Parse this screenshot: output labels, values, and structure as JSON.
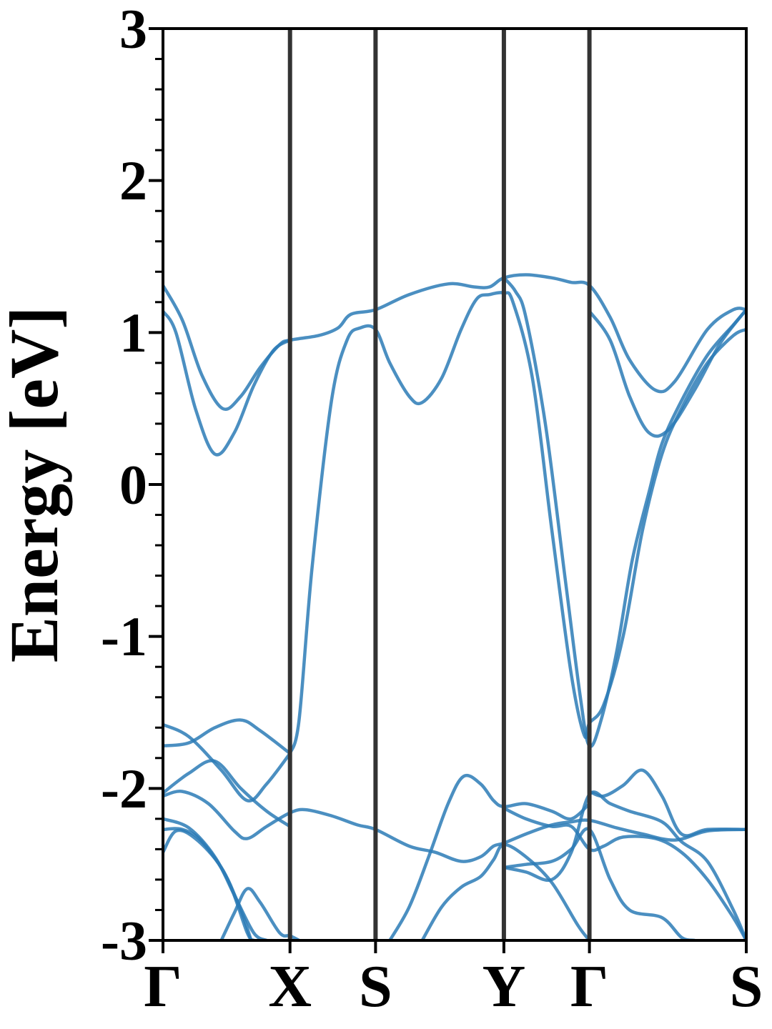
{
  "chart_data": {
    "type": "line",
    "title": "",
    "xlabel": "",
    "ylabel": "Energy [eV]",
    "ylim": [
      -3,
      3
    ],
    "x_range": [
      0,
      4.5
    ],
    "yticks": [
      3,
      2,
      1,
      0,
      -1,
      -2,
      -3
    ],
    "ytick_labels": [
      "3",
      "2",
      "1",
      "0",
      "-1",
      "-2",
      "-3"
    ],
    "kpoints": [
      {
        "label": "Γ",
        "x": 0.0
      },
      {
        "label": "X",
        "x": 0.98
      },
      {
        "label": "S",
        "x": 1.64
      },
      {
        "label": "Y",
        "x": 2.63
      },
      {
        "label": "Γ",
        "x": 3.29
      },
      {
        "label": "S",
        "x": 4.5
      }
    ],
    "colors": {
      "band": "#2c7bb6",
      "kline": "#333333",
      "axis": "#000000"
    },
    "series": [
      {
        "points": [
          [
            0,
            1.31
          ],
          [
            0.15,
            1.08
          ],
          [
            0.3,
            0.72
          ],
          [
            0.46,
            0.5
          ],
          [
            0.6,
            0.58
          ],
          [
            0.75,
            0.77
          ],
          [
            0.9,
            0.92
          ],
          [
            0.98,
            0.95
          ],
          [
            1.2,
            0.98
          ],
          [
            1.35,
            1.03
          ],
          [
            1.45,
            1.12
          ],
          [
            1.64,
            1.15
          ],
          [
            1.9,
            1.25
          ],
          [
            2.2,
            1.32
          ],
          [
            2.4,
            1.3
          ],
          [
            2.52,
            1.3
          ],
          [
            2.63,
            1.36
          ],
          [
            2.8,
            1.38
          ],
          [
            3.0,
            1.36
          ],
          [
            3.15,
            1.33
          ],
          [
            3.29,
            1.31
          ],
          [
            3.45,
            1.1
          ],
          [
            3.6,
            0.82
          ],
          [
            3.8,
            0.62
          ],
          [
            3.95,
            0.68
          ],
          [
            4.2,
            1.02
          ],
          [
            4.4,
            1.15
          ],
          [
            4.5,
            1.15
          ]
        ]
      },
      {
        "points": [
          [
            0,
            1.14
          ],
          [
            0.1,
            1.0
          ],
          [
            0.25,
            0.5
          ],
          [
            0.4,
            0.2
          ],
          [
            0.55,
            0.34
          ],
          [
            0.7,
            0.65
          ],
          [
            0.85,
            0.88
          ],
          [
            0.98,
            0.95
          ]
        ]
      },
      {
        "points": [
          [
            0.98,
            -1.77
          ],
          [
            1.05,
            -1.55
          ],
          [
            1.15,
            -0.55
          ],
          [
            1.3,
            0.55
          ],
          [
            1.42,
            0.95
          ],
          [
            1.52,
            1.03
          ],
          [
            1.64,
            1.02
          ],
          [
            1.75,
            0.8
          ],
          [
            1.9,
            0.58
          ],
          [
            2.0,
            0.54
          ],
          [
            2.15,
            0.7
          ],
          [
            2.3,
            1.02
          ],
          [
            2.42,
            1.22
          ],
          [
            2.52,
            1.25
          ],
          [
            2.63,
            1.26
          ],
          [
            2.7,
            1.2
          ],
          [
            2.85,
            0.7
          ],
          [
            3.0,
            -0.3
          ],
          [
            3.15,
            -1.25
          ],
          [
            3.25,
            -1.65
          ],
          [
            3.29,
            -1.57
          ],
          [
            3.4,
            -1.45
          ],
          [
            3.55,
            -1.0
          ],
          [
            3.7,
            -0.3
          ],
          [
            3.85,
            0.2
          ],
          [
            4.0,
            0.5
          ],
          [
            4.2,
            0.8
          ],
          [
            4.4,
            0.98
          ],
          [
            4.5,
            1.02
          ]
        ]
      },
      {
        "points": [
          [
            2.63,
            1.36
          ],
          [
            2.72,
            1.27
          ],
          [
            2.8,
            1.1
          ],
          [
            2.95,
            0.4
          ],
          [
            3.1,
            -0.6
          ],
          [
            3.22,
            -1.4
          ],
          [
            3.29,
            -1.72
          ],
          [
            3.38,
            -1.55
          ],
          [
            3.5,
            -1.1
          ],
          [
            3.62,
            -0.5
          ],
          [
            3.75,
            -0.05
          ],
          [
            3.85,
            0.27
          ],
          [
            4.0,
            0.55
          ],
          [
            4.2,
            0.85
          ],
          [
            4.4,
            1.05
          ],
          [
            4.5,
            1.15
          ]
        ]
      },
      {
        "points": [
          [
            3.29,
            1.14
          ],
          [
            3.45,
            0.95
          ],
          [
            3.6,
            0.58
          ],
          [
            3.75,
            0.34
          ],
          [
            3.9,
            0.36
          ],
          [
            4.1,
            0.62
          ],
          [
            4.3,
            0.93
          ],
          [
            4.5,
            1.15
          ]
        ]
      },
      {
        "points": [
          [
            0,
            -1.58
          ],
          [
            0.2,
            -1.66
          ],
          [
            0.45,
            -1.88
          ],
          [
            0.65,
            -2.08
          ],
          [
            0.8,
            -1.97
          ],
          [
            0.98,
            -1.77
          ]
        ]
      },
      {
        "points": [
          [
            0,
            -1.72
          ],
          [
            0.2,
            -1.7
          ],
          [
            0.4,
            -1.6
          ],
          [
            0.6,
            -1.55
          ],
          [
            0.75,
            -1.62
          ],
          [
            0.98,
            -1.77
          ]
        ]
      },
      {
        "points": [
          [
            0,
            -2.03
          ],
          [
            0.2,
            -1.9
          ],
          [
            0.4,
            -1.82
          ],
          [
            0.6,
            -2.0
          ],
          [
            0.8,
            -2.15
          ],
          [
            0.98,
            -2.25
          ]
        ]
      },
      {
        "points": [
          [
            0,
            -2.05
          ],
          [
            0.15,
            -2.02
          ],
          [
            0.35,
            -2.1
          ],
          [
            0.55,
            -2.28
          ],
          [
            0.65,
            -2.33
          ],
          [
            0.8,
            -2.25
          ],
          [
            0.98,
            -2.16
          ],
          [
            1.1,
            -2.14
          ],
          [
            1.3,
            -2.18
          ],
          [
            1.5,
            -2.24
          ],
          [
            1.64,
            -2.27
          ],
          [
            1.9,
            -2.38
          ],
          [
            2.1,
            -2.42
          ],
          [
            2.3,
            -2.48
          ],
          [
            2.45,
            -2.45
          ],
          [
            2.55,
            -2.38
          ],
          [
            2.63,
            -2.36
          ],
          [
            2.8,
            -2.3
          ],
          [
            3.0,
            -2.24
          ],
          [
            3.15,
            -2.22
          ],
          [
            3.29,
            -2.21
          ],
          [
            3.5,
            -2.26
          ],
          [
            3.7,
            -2.3
          ],
          [
            3.95,
            -2.34
          ],
          [
            4.2,
            -2.28
          ],
          [
            4.5,
            -2.27
          ]
        ]
      },
      {
        "points": [
          [
            0,
            -2.2
          ],
          [
            0.2,
            -2.26
          ],
          [
            0.4,
            -2.45
          ],
          [
            0.55,
            -2.7
          ],
          [
            0.7,
            -2.95
          ],
          [
            0.8,
            -3.0
          ]
        ]
      },
      {
        "points": [
          [
            0,
            -2.27
          ],
          [
            0.15,
            -2.27
          ],
          [
            0.3,
            -2.35
          ],
          [
            0.5,
            -2.6
          ],
          [
            0.65,
            -2.95
          ],
          [
            0.7,
            -3.0
          ]
        ]
      },
      {
        "points": [
          [
            0,
            -2.42
          ],
          [
            0.1,
            -2.28
          ],
          [
            0.25,
            -2.33
          ],
          [
            0.45,
            -2.52
          ],
          [
            0.6,
            -2.8
          ],
          [
            0.68,
            -3.0
          ]
        ]
      },
      {
        "points": [
          [
            0.45,
            -3.0
          ],
          [
            0.55,
            -2.82
          ],
          [
            0.65,
            -2.66
          ],
          [
            0.75,
            -2.75
          ],
          [
            0.9,
            -2.95
          ],
          [
            0.98,
            -2.97
          ],
          [
            1.05,
            -3.0
          ]
        ]
      },
      {
        "points": [
          [
            1.75,
            -3.0
          ],
          [
            1.9,
            -2.78
          ],
          [
            2.05,
            -2.45
          ],
          [
            2.2,
            -2.1
          ],
          [
            2.32,
            -1.92
          ],
          [
            2.45,
            -1.97
          ],
          [
            2.55,
            -2.08
          ],
          [
            2.63,
            -2.12
          ],
          [
            2.8,
            -2.1
          ],
          [
            3.0,
            -2.15
          ],
          [
            3.15,
            -2.2
          ],
          [
            3.29,
            -2.1
          ]
        ]
      },
      {
        "points": [
          [
            2.0,
            -3.0
          ],
          [
            2.15,
            -2.78
          ],
          [
            2.3,
            -2.65
          ],
          [
            2.45,
            -2.58
          ],
          [
            2.55,
            -2.47
          ],
          [
            2.63,
            -2.37
          ],
          [
            2.8,
            -2.45
          ],
          [
            3.0,
            -2.62
          ],
          [
            3.2,
            -2.9
          ],
          [
            3.29,
            -3.0
          ]
        ]
      },
      {
        "points": [
          [
            2.63,
            -2.52
          ],
          [
            2.8,
            -2.5
          ],
          [
            3.0,
            -2.48
          ],
          [
            3.15,
            -2.4
          ],
          [
            3.29,
            -2.27
          ],
          [
            3.45,
            -2.6
          ],
          [
            3.6,
            -2.8
          ],
          [
            3.85,
            -2.85
          ],
          [
            4.0,
            -2.98
          ],
          [
            4.1,
            -3.0
          ]
        ]
      },
      {
        "points": [
          [
            2.63,
            -2.52
          ],
          [
            2.8,
            -2.55
          ],
          [
            3.0,
            -2.6
          ],
          [
            3.15,
            -2.42
          ],
          [
            3.29,
            -2.04
          ],
          [
            3.45,
            -2.1
          ],
          [
            3.6,
            -2.15
          ],
          [
            3.85,
            -2.22
          ],
          [
            4.0,
            -2.35
          ],
          [
            4.2,
            -2.48
          ],
          [
            4.4,
            -2.8
          ],
          [
            4.5,
            -3.0
          ]
        ]
      },
      {
        "points": [
          [
            2.63,
            -2.13
          ],
          [
            2.8,
            -2.2
          ],
          [
            3.0,
            -2.25
          ],
          [
            3.15,
            -2.25
          ],
          [
            3.29,
            -2.4
          ],
          [
            3.4,
            -2.38
          ],
          [
            3.55,
            -2.32
          ],
          [
            3.8,
            -2.33
          ],
          [
            4.0,
            -2.42
          ],
          [
            4.2,
            -2.6
          ],
          [
            4.4,
            -2.85
          ],
          [
            4.5,
            -3.0
          ]
        ]
      },
      {
        "points": [
          [
            3.29,
            -2.02
          ],
          [
            3.4,
            -2.05
          ],
          [
            3.55,
            -1.98
          ],
          [
            3.7,
            -1.88
          ],
          [
            3.85,
            -2.05
          ],
          [
            4.0,
            -2.3
          ],
          [
            4.2,
            -2.27
          ],
          [
            4.5,
            -2.27
          ]
        ]
      }
    ]
  }
}
